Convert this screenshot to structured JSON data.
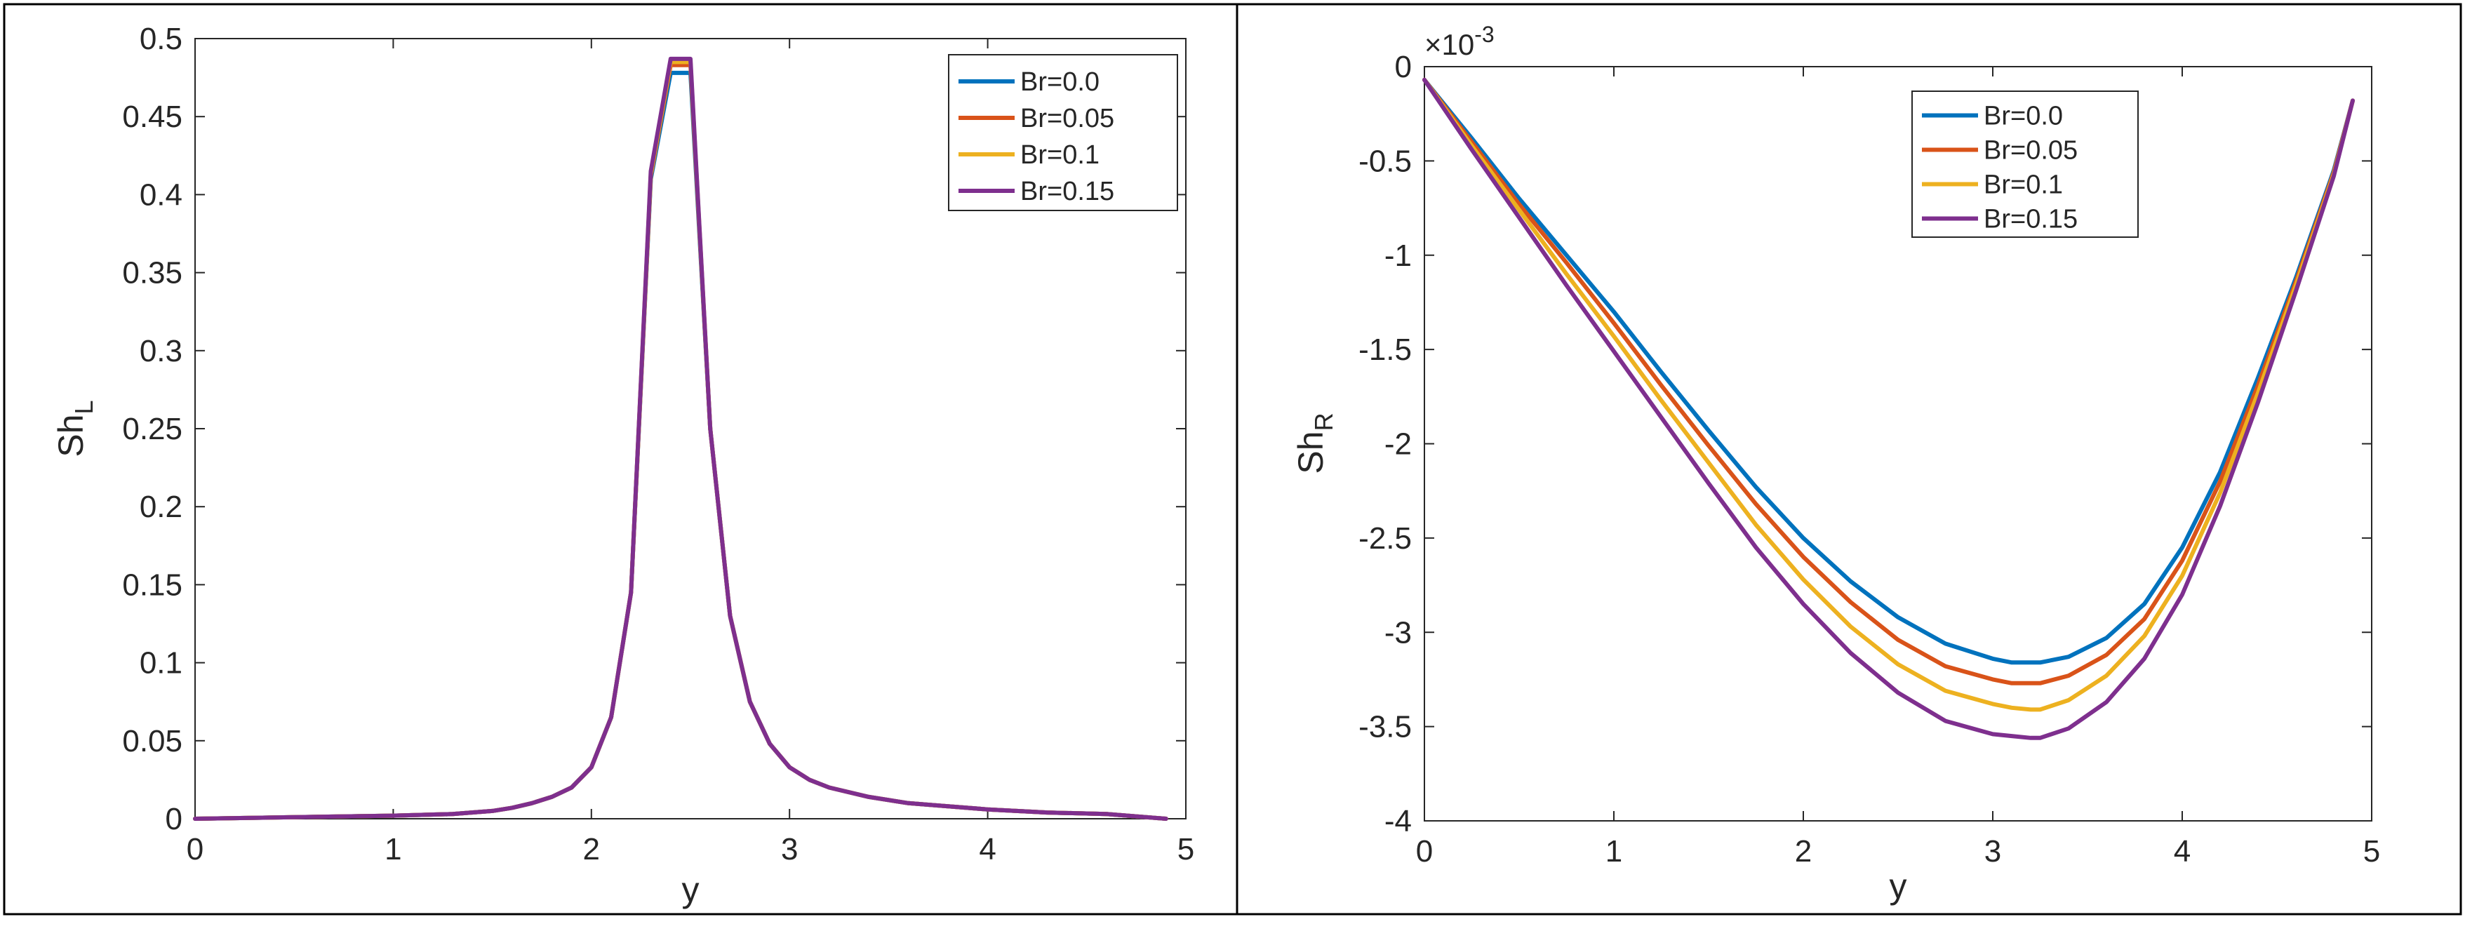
{
  "chart_data": [
    {
      "type": "line",
      "title": "",
      "xlabel": "y",
      "ylabel": "Sh",
      "ylabel_subscript": "L",
      "xlim": [
        0,
        5
      ],
      "ylim": [
        0,
        0.5
      ],
      "x_ticks": [
        0,
        1,
        2,
        3,
        4,
        5
      ],
      "y_ticks": [
        0,
        0.05,
        0.1,
        0.15,
        0.2,
        0.25,
        0.3,
        0.35,
        0.4,
        0.45,
        0.5
      ],
      "x_tick_labels": [
        "0",
        "1",
        "2",
        "3",
        "4",
        "5"
      ],
      "y_tick_labels": [
        "0",
        "0.05",
        "0.1",
        "0.15",
        "0.2",
        "0.25",
        "0.3",
        "0.35",
        "0.4",
        "0.45",
        "0.5"
      ],
      "grid": false,
      "legend_position": "top-right",
      "x": [
        0,
        0.5,
        1.0,
        1.3,
        1.5,
        1.6,
        1.7,
        1.8,
        1.9,
        2.0,
        2.1,
        2.2,
        2.3,
        2.4,
        2.5,
        2.6,
        2.7,
        2.8,
        2.9,
        3.0,
        3.1,
        3.2,
        3.4,
        3.6,
        3.8,
        4.0,
        4.3,
        4.6,
        4.9
      ],
      "series": [
        {
          "name": "Br=0.0",
          "color": "#0072BD",
          "values": [
            0,
            0.001,
            0.002,
            0.003,
            0.005,
            0.007,
            0.01,
            0.014,
            0.02,
            0.033,
            0.065,
            0.145,
            0.41,
            0.478,
            0.478,
            0.25,
            0.13,
            0.075,
            0.048,
            0.033,
            0.025,
            0.02,
            0.014,
            0.01,
            0.008,
            0.006,
            0.004,
            0.003,
            0
          ]
        },
        {
          "name": "Br=0.05",
          "color": "#D95319",
          "values": [
            0,
            0.001,
            0.002,
            0.003,
            0.005,
            0.007,
            0.01,
            0.014,
            0.02,
            0.033,
            0.065,
            0.145,
            0.412,
            0.483,
            0.483,
            0.25,
            0.13,
            0.075,
            0.048,
            0.033,
            0.025,
            0.02,
            0.014,
            0.01,
            0.008,
            0.006,
            0.004,
            0.003,
            0
          ]
        },
        {
          "name": "Br=0.1",
          "color": "#EDB120",
          "values": [
            0,
            0.001,
            0.002,
            0.003,
            0.005,
            0.007,
            0.01,
            0.014,
            0.02,
            0.033,
            0.065,
            0.145,
            0.413,
            0.485,
            0.485,
            0.25,
            0.13,
            0.075,
            0.048,
            0.033,
            0.025,
            0.02,
            0.014,
            0.01,
            0.008,
            0.006,
            0.004,
            0.003,
            0
          ]
        },
        {
          "name": "Br=0.15",
          "color": "#7E2F8E",
          "values": [
            0,
            0.001,
            0.002,
            0.003,
            0.005,
            0.007,
            0.01,
            0.014,
            0.02,
            0.033,
            0.065,
            0.145,
            0.415,
            0.487,
            0.487,
            0.25,
            0.13,
            0.075,
            0.048,
            0.033,
            0.025,
            0.02,
            0.014,
            0.01,
            0.008,
            0.006,
            0.004,
            0.003,
            0
          ]
        }
      ]
    },
    {
      "type": "line",
      "title": "",
      "xlabel": "y",
      "ylabel": "Sh",
      "ylabel_subscript": "R",
      "exponent_label": "×10",
      "exponent_value": "-3",
      "xlim": [
        0,
        5
      ],
      "ylim": [
        -4,
        0
      ],
      "x_ticks": [
        0,
        1,
        2,
        3,
        4,
        5
      ],
      "y_ticks": [
        0,
        -0.5,
        -1,
        -1.5,
        -2,
        -2.5,
        -3,
        -3.5,
        -4
      ],
      "x_tick_labels": [
        "0",
        "1",
        "2",
        "3",
        "4",
        "5"
      ],
      "y_tick_labels": [
        "0",
        "-0.5",
        "-1",
        "-1.5",
        "-2",
        "-2.5",
        "-3",
        "-3.5",
        "-4"
      ],
      "grid": false,
      "legend_position": "top-center",
      "x": [
        0,
        0.25,
        0.5,
        0.75,
        1.0,
        1.25,
        1.5,
        1.75,
        2.0,
        2.25,
        2.5,
        2.75,
        3.0,
        3.1,
        3.2,
        3.25,
        3.4,
        3.6,
        3.8,
        4.0,
        4.2,
        4.4,
        4.6,
        4.8,
        4.9
      ],
      "series": [
        {
          "name": "Br=0.0",
          "color": "#0072BD",
          "values": [
            -0.07,
            -0.38,
            -0.7,
            -1.0,
            -1.3,
            -1.62,
            -1.93,
            -2.23,
            -2.5,
            -2.73,
            -2.92,
            -3.06,
            -3.14,
            -3.16,
            -3.16,
            -3.16,
            -3.13,
            -3.03,
            -2.85,
            -2.55,
            -2.15,
            -1.65,
            -1.12,
            -0.55,
            -0.18
          ]
        },
        {
          "name": "Br=0.05",
          "color": "#D95319",
          "values": [
            -0.07,
            -0.4,
            -0.73,
            -1.04,
            -1.36,
            -1.69,
            -2.01,
            -2.32,
            -2.6,
            -2.84,
            -3.04,
            -3.18,
            -3.25,
            -3.27,
            -3.27,
            -3.27,
            -3.23,
            -3.12,
            -2.93,
            -2.62,
            -2.2,
            -1.69,
            -1.14,
            -0.56,
            -0.18
          ]
        },
        {
          "name": "Br=0.1",
          "color": "#EDB120",
          "values": [
            -0.07,
            -0.42,
            -0.76,
            -1.1,
            -1.43,
            -1.77,
            -2.1,
            -2.43,
            -2.72,
            -2.97,
            -3.17,
            -3.31,
            -3.38,
            -3.4,
            -3.41,
            -3.41,
            -3.36,
            -3.23,
            -3.02,
            -2.7,
            -2.26,
            -1.73,
            -1.16,
            -0.57,
            -0.18
          ]
        },
        {
          "name": "Br=0.15",
          "color": "#7E2F8E",
          "values": [
            -0.07,
            -0.44,
            -0.8,
            -1.16,
            -1.51,
            -1.86,
            -2.21,
            -2.55,
            -2.85,
            -3.11,
            -3.32,
            -3.47,
            -3.54,
            -3.55,
            -3.56,
            -3.56,
            -3.51,
            -3.37,
            -3.14,
            -2.8,
            -2.33,
            -1.78,
            -1.19,
            -0.58,
            -0.18
          ]
        }
      ]
    }
  ]
}
